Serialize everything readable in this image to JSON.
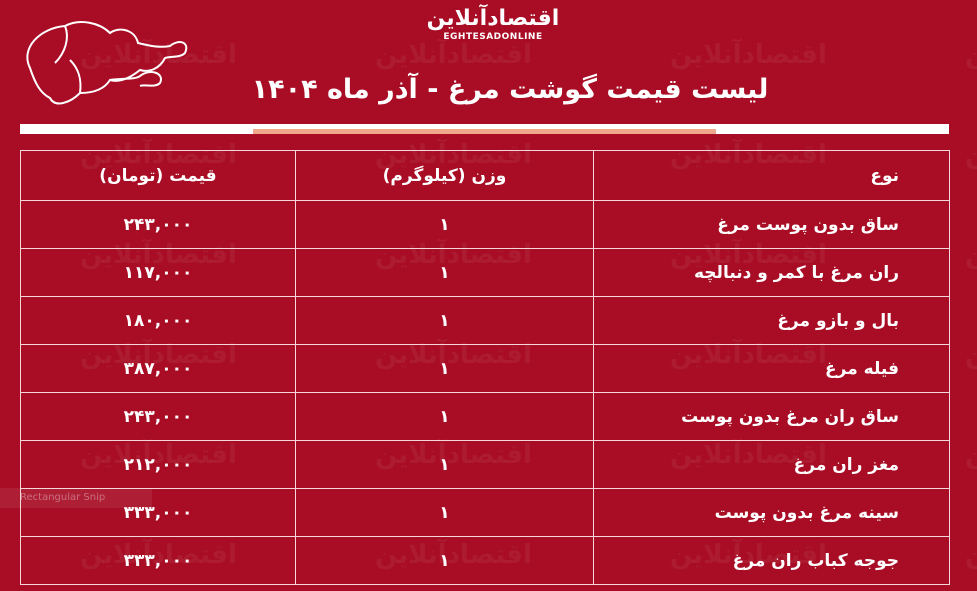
{
  "logo": {
    "fa": "اقتصادآنلاین",
    "en": "EGHTESADONLINE"
  },
  "title": "لیست قیمت گوشت مرغ - آذر ماه ۱۴۰۴",
  "table": {
    "headers": [
      "نوع",
      "وزن (کیلوگرم)",
      "قیمت (تومان)"
    ],
    "rows": [
      [
        "ساق بدون پوست مرغ",
        "۱",
        "۲۴۳,۰۰۰"
      ],
      [
        "ران مرغ با کمر و دنبالچه",
        "۱",
        "۱۱۷,۰۰۰"
      ],
      [
        "بال و بازو مرغ",
        "۱",
        "۱۸۰,۰۰۰"
      ],
      [
        "فیله مرغ",
        "۱",
        "۳۸۷,۰۰۰"
      ],
      [
        "ساق ران مرغ بدون پوست",
        "۱",
        "۲۴۳,۰۰۰"
      ],
      [
        "مغز ران مرغ",
        "۱",
        "۲۱۲,۰۰۰"
      ],
      [
        "سینه مرغ بدون پوست",
        "۱",
        "۳۳۳,۰۰۰"
      ],
      [
        "جوجه کباب ران مرغ",
        "۱",
        "۳۳۳,۰۰۰"
      ]
    ]
  },
  "snip_label": "Rectangular Snip",
  "colors": {
    "background": "#a80d25",
    "accent": "#f0a88c"
  }
}
